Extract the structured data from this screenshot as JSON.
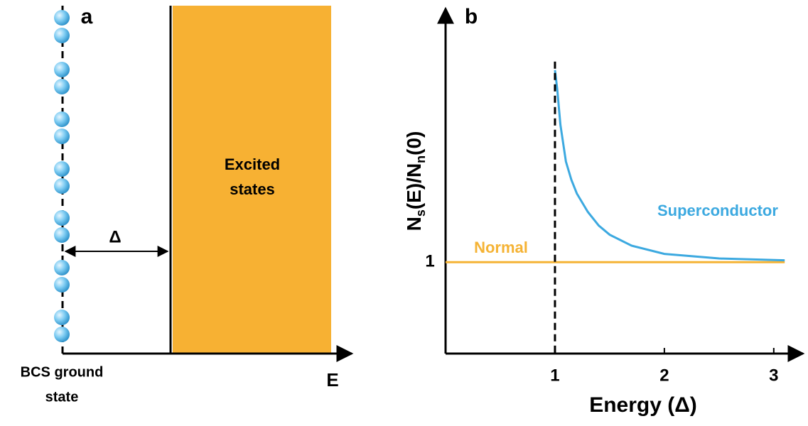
{
  "panel_a": {
    "label": "a",
    "box_label": [
      "Excited",
      "states"
    ],
    "gap_label": "Δ",
    "ground_label": [
      "BCS ground",
      "state"
    ],
    "axis_label": "E"
  },
  "chart_data": {
    "type": "line",
    "label": "b",
    "xlabel": "Energy (Δ)",
    "ylabel": [
      "N",
      "s",
      "(E)/N",
      "n",
      "(0)"
    ],
    "xlim": [
      0,
      3.3
    ],
    "ylim": [
      0,
      3.75
    ],
    "xticks": [
      1,
      2,
      3
    ],
    "yticks": [
      1
    ],
    "gap_line": 1,
    "series": [
      {
        "name": "Superconductor",
        "color": "#3ca9e0",
        "x": [
          1.0,
          1.02,
          1.05,
          1.1,
          1.15,
          1.2,
          1.3,
          1.4,
          1.5,
          1.7,
          2.0,
          2.5,
          3.1
        ],
        "values": [
          3.1,
          2.9,
          2.5,
          2.1,
          1.9,
          1.75,
          1.55,
          1.4,
          1.3,
          1.18,
          1.09,
          1.04,
          1.02
        ]
      },
      {
        "name": "Normal",
        "color": "#f5b335",
        "x": [
          0,
          3.1
        ],
        "values": [
          1,
          1
        ]
      }
    ]
  }
}
